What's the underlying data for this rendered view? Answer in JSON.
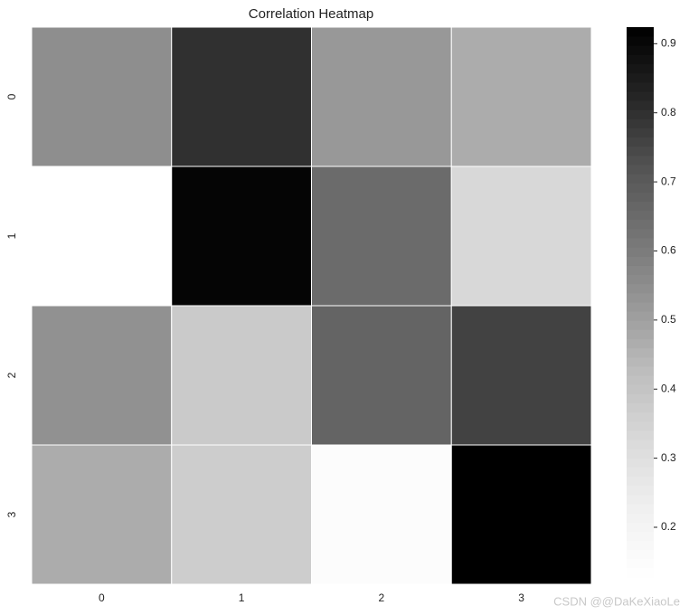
{
  "chart_data": {
    "type": "heatmap",
    "title": "Correlation Heatmap",
    "xlabels": [
      "0",
      "1",
      "2",
      "3"
    ],
    "ylabels": [
      "0",
      "1",
      "2",
      "3"
    ],
    "z": [
      [
        0.55,
        0.8,
        0.52,
        0.47
      ],
      [
        0.128,
        0.91,
        0.65,
        0.33
      ],
      [
        0.54,
        0.38,
        0.67,
        0.76
      ],
      [
        0.47,
        0.37,
        0.15,
        0.924
      ]
    ],
    "colormap": "Greys",
    "clim": [
      0.128,
      0.924
    ],
    "cticks": [
      0.2,
      0.3,
      0.4,
      0.5,
      0.6,
      0.7,
      0.8,
      0.9
    ],
    "watermark": "CSDN @@DaKeXiaoLe"
  }
}
